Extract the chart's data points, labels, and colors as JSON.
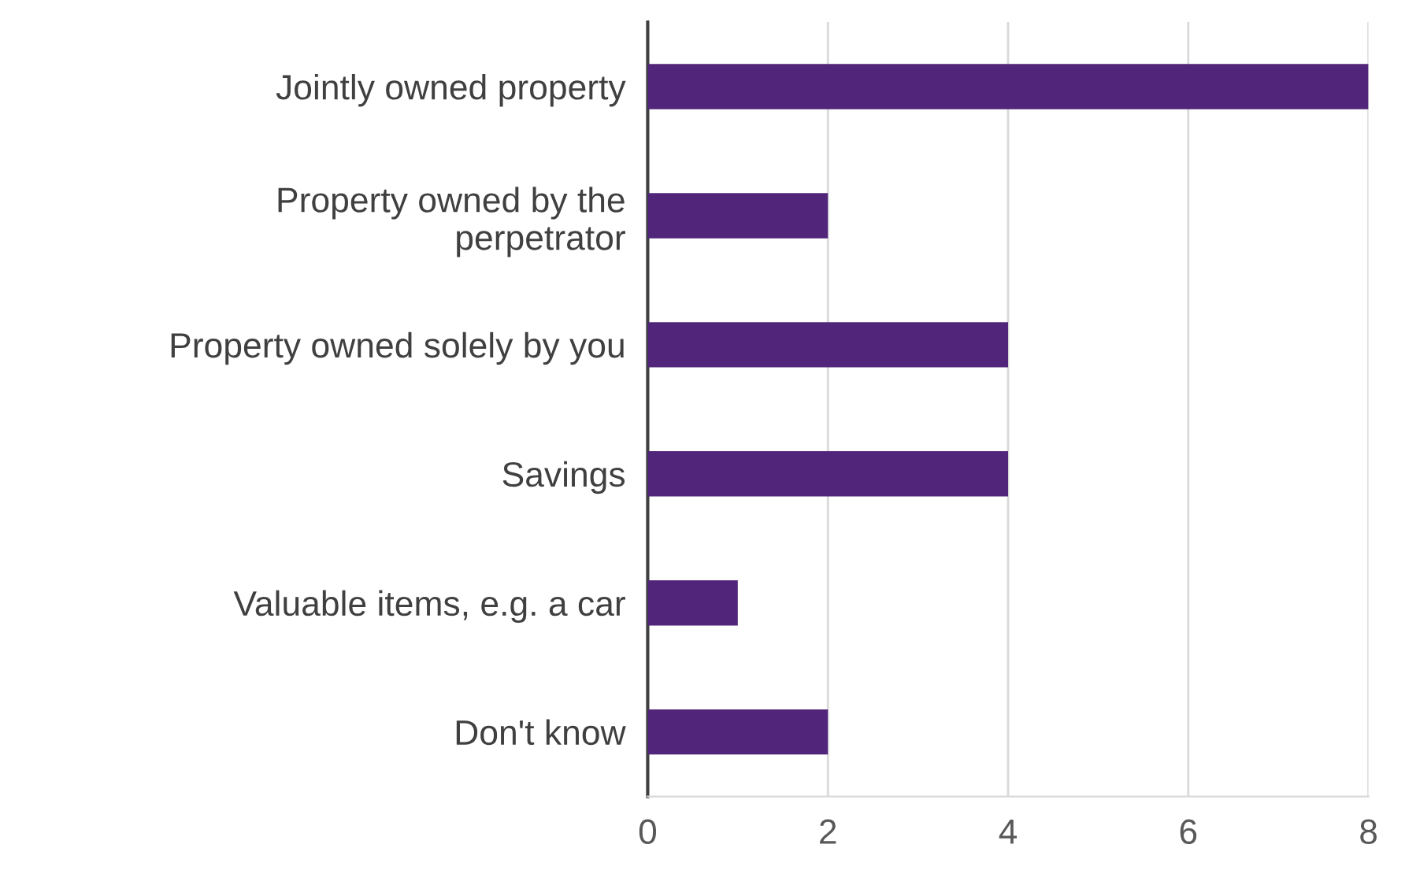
{
  "chart_data": {
    "type": "bar",
    "orientation": "horizontal",
    "categories": [
      "Jointly owned property",
      "Property owned by the\nperpetrator",
      "Property owned solely by you",
      "Savings",
      "Valuable items, e.g. a car",
      "Don't know"
    ],
    "values": [
      8,
      2,
      4,
      4,
      1,
      2
    ],
    "color": "#51267a",
    "xlim": [
      0,
      8
    ],
    "xticks": [
      0,
      2,
      4,
      6,
      8
    ],
    "grid": "x",
    "legend": false
  }
}
